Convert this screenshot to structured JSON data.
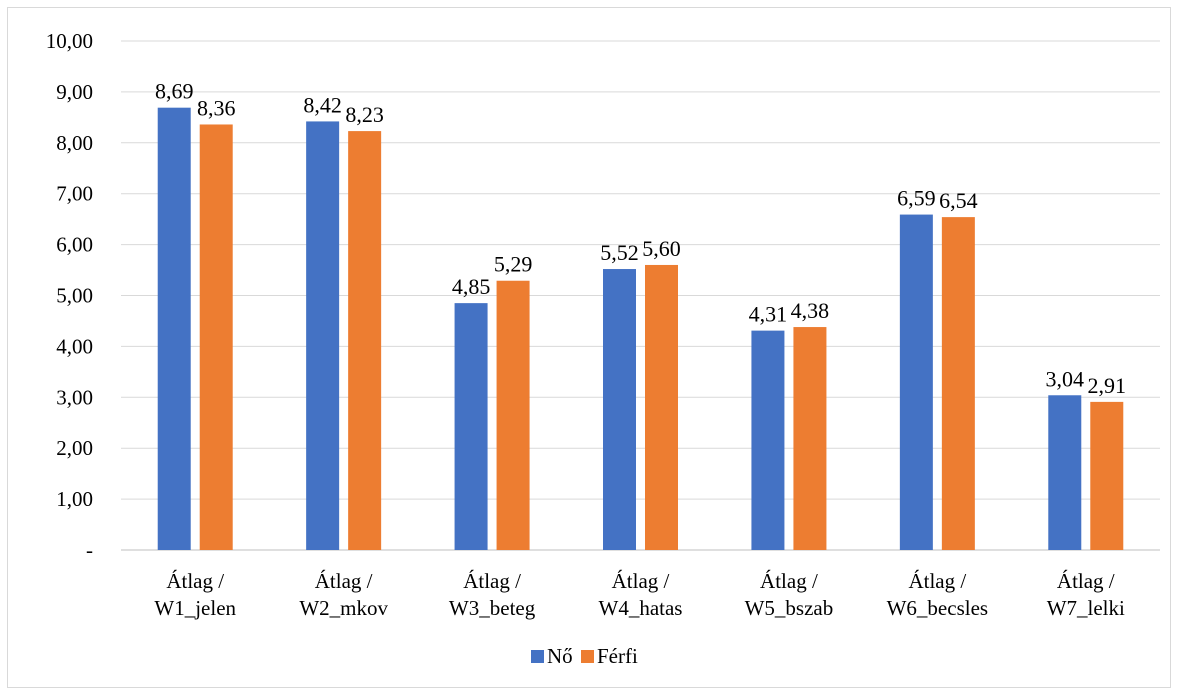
{
  "chart_data": {
    "type": "bar",
    "categories": [
      [
        "Átlag /",
        "W1_jelen"
      ],
      [
        "Átlag /",
        "W2_mkov"
      ],
      [
        "Átlag /",
        "W3_beteg"
      ],
      [
        "Átlag /",
        "W4_hatas"
      ],
      [
        "Átlag /",
        "W5_bszab"
      ],
      [
        "Átlag /",
        "W6_becsles"
      ],
      [
        "Átlag /",
        "W7_lelki"
      ]
    ],
    "series": [
      {
        "name": "Nő",
        "color": "#4472c4",
        "values": [
          8.69,
          8.42,
          4.85,
          5.52,
          4.31,
          6.59,
          3.04
        ],
        "labels": [
          "8,69",
          "8,42",
          "4,85",
          "5,52",
          "4,31",
          "6,59",
          "3,04"
        ]
      },
      {
        "name": "Férfi",
        "color": "#ed7d31",
        "values": [
          8.36,
          8.23,
          5.29,
          5.6,
          4.38,
          6.54,
          2.91
        ],
        "labels": [
          "8,36",
          "8,23",
          "5,29",
          "5,60",
          "4,38",
          "6,54",
          "2,91"
        ]
      }
    ],
    "ylim": [
      0,
      10
    ],
    "yticks": [
      0,
      1,
      2,
      3,
      4,
      5,
      6,
      7,
      8,
      9,
      10
    ],
    "ytick_labels": [
      "-",
      "1,00",
      "2,00",
      "3,00",
      "4,00",
      "5,00",
      "6,00",
      "7,00",
      "8,00",
      "9,00",
      "10,00"
    ],
    "title": "",
    "xlabel": "",
    "ylabel": "",
    "grid": true,
    "legend_position": "bottom"
  }
}
